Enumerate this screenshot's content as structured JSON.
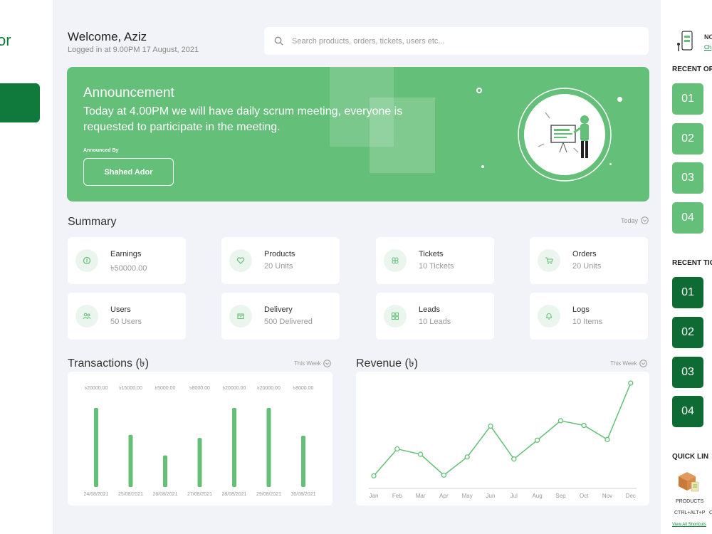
{
  "sidebar": {
    "brand": "or"
  },
  "header": {
    "welcome": "Welcome, Aziz",
    "logged_in": "Logged in at 9.00PM 17 August, 2021",
    "search_placeholder": "Search products, orders, tickets, users etc..."
  },
  "announcement": {
    "title": "Announcement",
    "text": "Today at 4.00PM we will have daily scrum meeting, everyone is requested to participate in the meeting.",
    "by_label": "Announced By",
    "by_name": "Shahed Ador"
  },
  "summary": {
    "title": "Summary",
    "filter": "Today",
    "cards": [
      {
        "label": "Earnings",
        "value": "৳50000.00",
        "icon": "coin-icon"
      },
      {
        "label": "Products",
        "value": "20 Units",
        "icon": "heart-icon"
      },
      {
        "label": "Tickets",
        "value": "10 Tickets",
        "icon": "ticket-icon"
      },
      {
        "label": "Orders",
        "value": "20 Units",
        "icon": "cart-icon"
      },
      {
        "label": "Users",
        "value": "50 Users",
        "icon": "users-icon"
      },
      {
        "label": "Delivery",
        "value": "500 Delivered",
        "icon": "box-icon"
      },
      {
        "label": "Leads",
        "value": "10 Leads",
        "icon": "grid-icon"
      },
      {
        "label": "Logs",
        "value": "10 Items",
        "icon": "bell-icon"
      }
    ]
  },
  "transactions": {
    "title": "Transactions (৳)",
    "filter": "This Week"
  },
  "revenue": {
    "title": "Revenue (৳)",
    "filter": "This Week"
  },
  "chart_data": [
    {
      "type": "bar",
      "categories": [
        "24/08/2021",
        "25/08/2021",
        "26/08/2021",
        "27/08/2021",
        "28/08/2021",
        "29/08/2021",
        "30/08/2021"
      ],
      "values": [
        20000,
        15000,
        5000,
        8000,
        20000,
        20000,
        8000
      ],
      "heights": [
        100,
        66,
        40,
        62,
        100,
        100,
        65
      ],
      "labels": [
        "৳20000.00",
        "৳15000.00",
        "৳5000.00",
        "৳8000.00",
        "৳20000.00",
        "৳20000.00",
        "৳8000.00"
      ],
      "color": "#64bf78"
    },
    {
      "type": "line",
      "x": [
        "Jan",
        "Feb",
        "Mar",
        "Apr",
        "May",
        "Jun",
        "Jul",
        "Aug",
        "Sep",
        "Oct",
        "Nov",
        "Dec"
      ],
      "values": [
        5,
        45,
        37,
        6,
        33,
        79,
        30,
        58,
        87,
        80,
        59,
        143
      ],
      "ylim": [
        0,
        160
      ],
      "color": "#64bf78"
    }
  ],
  "right_panel": {
    "notice_prefix": "NO",
    "notice_link": "Ch",
    "recent_orders_title": "RECENT OR",
    "recent_orders": [
      "01",
      "02",
      "03",
      "04"
    ],
    "recent_tickets_title": "RECENT TIC",
    "recent_tickets": [
      "01",
      "02",
      "03",
      "04"
    ],
    "quick_links_title": "QUICK LIN",
    "quick_link_label": "PRODUCTS",
    "quick_link_shortcut": "CTRL+ALT+P",
    "quick_link_extra": "C",
    "view_all": "View All Shortcuts"
  }
}
